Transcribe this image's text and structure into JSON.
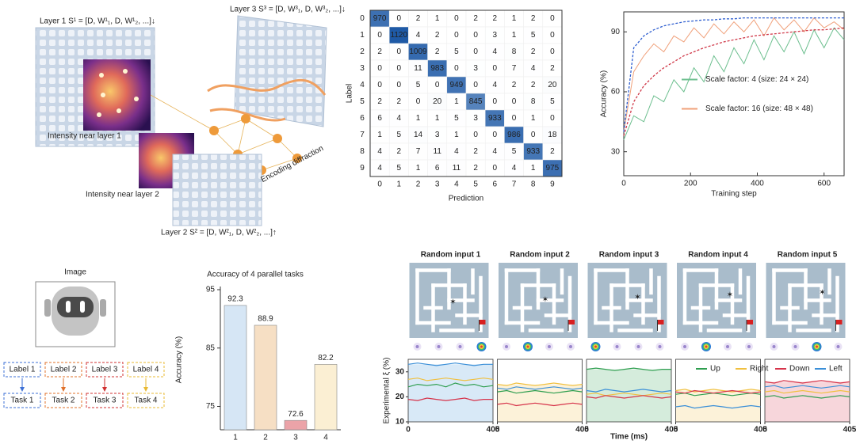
{
  "diagram": {
    "layer1": "Layer 1 S¹ = [D, W¹₁, D, W¹₂, ...]↓",
    "layer3": "Layer 3 S³ = [D, W³₁, D, W³₂, ...]↓",
    "intensity1": "Intensity near layer 1",
    "intensity2": "Intensity near layer 2",
    "encoding": "Encoding diffraction",
    "layer2": "Layer 2 S² = [D, W²₁, D, W²₂, ...]↑"
  },
  "task_diagram": {
    "image_title": "Image",
    "labels": [
      "Label 1",
      "Label 2",
      "Label 3",
      "Label 4"
    ],
    "tasks": [
      "Task 1",
      "Task 2",
      "Task 3",
      "Task 4"
    ],
    "colors": [
      "#3b6fd6",
      "#e0702a",
      "#d03030",
      "#e8b830"
    ]
  },
  "chart_data": [
    {
      "type": "heatmap",
      "x_label": "Prediction",
      "y_label": "Label",
      "categories": [
        "0",
        "1",
        "2",
        "3",
        "4",
        "5",
        "6",
        "7",
        "8",
        "9"
      ],
      "colors": [
        "#ffffff",
        "#1f5aa6"
      ],
      "values": [
        [
          970,
          0,
          2,
          1,
          0,
          2,
          2,
          1,
          2,
          0
        ],
        [
          0,
          1120,
          4,
          2,
          0,
          0,
          3,
          1,
          5,
          0
        ],
        [
          2,
          0,
          1009,
          2,
          5,
          0,
          4,
          8,
          2,
          0
        ],
        [
          0,
          0,
          11,
          983,
          0,
          3,
          0,
          7,
          4,
          2
        ],
        [
          0,
          0,
          5,
          0,
          949,
          0,
          4,
          2,
          2,
          20
        ],
        [
          2,
          2,
          0,
          20,
          1,
          845,
          0,
          0,
          8,
          5
        ],
        [
          6,
          4,
          1,
          1,
          5,
          3,
          933,
          0,
          1,
          0
        ],
        [
          1,
          5,
          14,
          3,
          1,
          0,
          0,
          986,
          0,
          18
        ],
        [
          4,
          2,
          7,
          11,
          4,
          2,
          4,
          5,
          933,
          2
        ],
        [
          4,
          5,
          1,
          6,
          11,
          2,
          0,
          4,
          1,
          975
        ]
      ]
    },
    {
      "type": "line",
      "x_label": "Training step",
      "y_label": "Accuracy (%)",
      "xlim": [
        0,
        660
      ],
      "ylim": [
        18,
        100
      ],
      "xticks": [
        0,
        200,
        400,
        600
      ],
      "yticks": [
        30,
        60,
        90
      ],
      "legend": "center right",
      "x": [
        0,
        30,
        60,
        90,
        120,
        150,
        180,
        210,
        240,
        270,
        300,
        330,
        360,
        390,
        420,
        450,
        480,
        510,
        540,
        570,
        600,
        630,
        660
      ],
      "series": [
        {
          "name": "Scale factor: 4 (size: 24 × 24)",
          "color": "#6dbf8f",
          "values": [
            36,
            48,
            45,
            58,
            55,
            66,
            60,
            72,
            65,
            78,
            70,
            82,
            74,
            86,
            76,
            88,
            80,
            90,
            79,
            91,
            82,
            92,
            86
          ]
        },
        {
          "name": "Scale factor: 16 (size: 48 × 48)",
          "color": "#f0a07a",
          "values": [
            40,
            70,
            78,
            84,
            80,
            88,
            85,
            92,
            87,
            94,
            89,
            95,
            90,
            96,
            88,
            97,
            91,
            96,
            90,
            97,
            92,
            95,
            91
          ]
        },
        {
          "color": "#2f5fd0",
          "dash": true,
          "values": [
            40,
            82,
            88,
            91,
            93,
            94,
            95,
            95.5,
            96,
            96,
            96.5,
            96.5,
            97,
            97,
            97,
            97,
            97,
            97,
            97,
            97,
            97,
            97,
            97
          ]
        },
        {
          "color": "#d03a4a",
          "dash": true,
          "values": [
            38,
            55,
            63,
            68,
            72,
            75,
            78,
            80,
            82,
            83.5,
            85,
            86,
            87,
            88,
            88.5,
            89,
            89.5,
            90,
            90.5,
            91,
            91,
            91.5,
            92
          ]
        }
      ]
    },
    {
      "type": "bar",
      "title": "Accuracy of 4 parallel tasks",
      "y_label": "Accuracy (%)",
      "categories": [
        "1",
        "2",
        "3",
        "4"
      ],
      "values": [
        92.3,
        88.9,
        72.6,
        82.2
      ],
      "colors": [
        "#d6e6f5",
        "#f6dfc4",
        "#eba3a8",
        "#fbefd3"
      ],
      "label_colors": [
        "#3b6fd6",
        "#e0702a",
        "#d03030",
        "#e8b830"
      ],
      "ylim": [
        71,
        95
      ],
      "yticks": [
        75,
        85,
        95
      ]
    },
    {
      "type": "segmented-line",
      "x_label": "Time (ms)",
      "y_label": "Experimental ξ (%)",
      "xlim": [
        0,
        405
      ],
      "xticks": [
        0,
        405
      ],
      "ylim": [
        10,
        35
      ],
      "yticks": [
        10,
        20,
        30
      ],
      "legend": "upper right",
      "x": [
        0,
        45,
        90,
        135,
        180,
        225,
        270,
        315,
        360,
        405
      ],
      "series": [
        {
          "name": "Up",
          "color": "#2e9e4f"
        },
        {
          "name": "Right",
          "color": "#f0c040"
        },
        {
          "name": "Down",
          "color": "#d6334a"
        },
        {
          "name": "Left",
          "color": "#3a8fd8"
        }
      ],
      "segments": [
        {
          "title": "Random input 1",
          "highlight": "Left",
          "values": [
            [
              24,
              25,
              24.5,
              25,
              24,
              25.5,
              24.5,
              25,
              24,
              24.5
            ],
            [
              27,
              27.5,
              26.5,
              27,
              27.5,
              27,
              26.5,
              27,
              27.5,
              27
            ],
            [
              19,
              18.5,
              19.5,
              19,
              18.5,
              19,
              19.5,
              18.5,
              19,
              19
            ],
            [
              33,
              33.5,
              33,
              32.5,
              33,
              33.5,
              33,
              32.5,
              33,
              33
            ]
          ]
        },
        {
          "title": "Random input 2",
          "highlight": "Right",
          "values": [
            [
              22,
              22.5,
              21.5,
              22,
              22.5,
              22,
              21.5,
              22,
              22.5,
              22
            ],
            [
              25,
              24.5,
              25.5,
              25,
              24.5,
              25,
              25.5,
              25,
              24.5,
              25
            ],
            [
              17,
              17.5,
              16.5,
              17,
              17.5,
              17,
              16.5,
              17,
              17.5,
              17
            ],
            [
              23.5,
              23,
              24,
              23.5,
              23,
              23.5,
              24,
              23.5,
              23,
              23.5
            ]
          ]
        },
        {
          "title": "Random input 3",
          "highlight": "Up",
          "values": [
            [
              31,
              31.5,
              31,
              30.5,
              31,
              31.5,
              31,
              30.5,
              31,
              31
            ],
            [
              21,
              21.5,
              20.5,
              21,
              21.5,
              21,
              20.5,
              21,
              21.5,
              21
            ],
            [
              20,
              19.5,
              20.5,
              20,
              19.5,
              20,
              20.5,
              20,
              19.5,
              20
            ],
            [
              22.5,
              22,
              23,
              22.5,
              22,
              22.5,
              23,
              22.5,
              22,
              22.5
            ]
          ]
        },
        {
          "title": "Random input 4",
          "highlight": "Right",
          "values": [
            [
              21,
              21.5,
              20.5,
              21,
              21.5,
              21,
              20.5,
              21,
              21.5,
              21
            ],
            [
              22.5,
              23,
              22,
              22.5,
              23,
              22.5,
              22,
              22.5,
              23,
              22.5
            ],
            [
              22,
              21.5,
              22.5,
              22,
              21.5,
              22,
              22.5,
              22,
              21.5,
              22
            ],
            [
              16,
              16.5,
              15.5,
              16,
              16.5,
              16,
              15.5,
              16,
              16.5,
              16
            ]
          ]
        },
        {
          "title": "Random input 5",
          "highlight": "Down",
          "values": [
            [
              20,
              20.5,
              19.5,
              20,
              20.5,
              20,
              19.5,
              20,
              20.5,
              20
            ],
            [
              22,
              22.5,
              21.5,
              22,
              22.5,
              22,
              21.5,
              22,
              22.5,
              22
            ],
            [
              26,
              25.5,
              26.5,
              26,
              25.5,
              26,
              26.5,
              26,
              25.5,
              26
            ],
            [
              24,
              24.5,
              23.5,
              24,
              24.5,
              24,
              23.5,
              24,
              24.5,
              24
            ]
          ]
        }
      ]
    }
  ]
}
